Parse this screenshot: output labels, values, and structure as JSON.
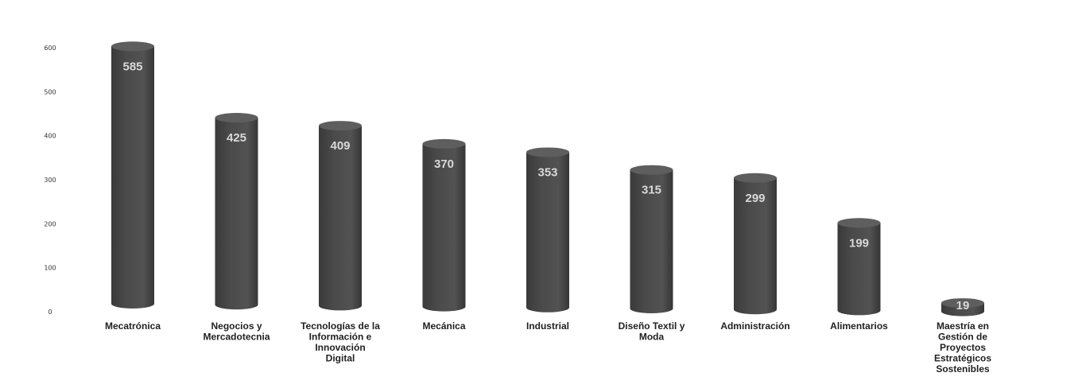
{
  "chart_data": {
    "type": "bar",
    "categories": [
      "Mecatrónica",
      "Negocios y Mercadotecnia",
      "Tecnologías de la Información e Innovación Digital",
      "Mecánica",
      "Industrial",
      "Diseño Textil y Moda",
      "Administración",
      "Alimentarios",
      "Maestría en Gestión de Proyectos Estratégicos Sostenibles"
    ],
    "category_lines": [
      [
        "Mecatrónica"
      ],
      [
        "Negocios y",
        "Mercadotecnia"
      ],
      [
        "Tecnologías de la",
        "Información e",
        "Innovación",
        "Digital"
      ],
      [
        "Mecánica"
      ],
      [
        "Industrial"
      ],
      [
        "Diseño Textil y",
        "Moda"
      ],
      [
        "Administración"
      ],
      [
        "Alimentarios"
      ],
      [
        "Maestría en",
        "Gestión de",
        "Proyectos",
        "Estratégicos",
        "Sostenibles"
      ]
    ],
    "values": [
      585,
      425,
      409,
      370,
      353,
      315,
      299,
      199,
      19
    ],
    "value_labels": [
      "585",
      "425",
      "409",
      "370",
      "353",
      "315",
      "299",
      "199",
      "19"
    ],
    "yticks": [
      0,
      100,
      200,
      300,
      400,
      500,
      600
    ],
    "ytick_labels": [
      "0",
      "100",
      "200",
      "300",
      "400",
      "500",
      "600"
    ],
    "ylim": [
      0,
      600
    ],
    "title": "",
    "xlabel": "",
    "ylabel": "",
    "grid": false,
    "legend": "none",
    "bar_style": "cylinder",
    "bar_color": "#4a4a4a",
    "bar_top_color": "#5e5e5e",
    "value_label_color": "#d8d8d8"
  }
}
